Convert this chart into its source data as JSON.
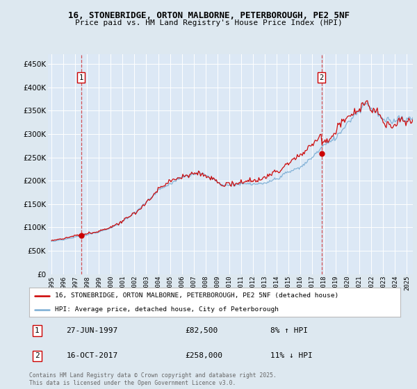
{
  "title_line1": "16, STONEBRIDGE, ORTON MALBORNE, PETERBOROUGH, PE2 5NF",
  "title_line2": "Price paid vs. HM Land Registry's House Price Index (HPI)",
  "legend_label_red": "16, STONEBRIDGE, ORTON MALBORNE, PETERBOROUGH, PE2 5NF (detached house)",
  "legend_label_blue": "HPI: Average price, detached house, City of Peterborough",
  "annotation1_date": "27-JUN-1997",
  "annotation1_price": "£82,500",
  "annotation1_hpi": "8% ↑ HPI",
  "annotation2_date": "16-OCT-2017",
  "annotation2_price": "£258,000",
  "annotation2_hpi": "11% ↓ HPI",
  "copyright_text": "Contains HM Land Registry data © Crown copyright and database right 2025.\nThis data is licensed under the Open Government Licence v3.0.",
  "red_color": "#cc0000",
  "blue_color": "#7aadd4",
  "background_color": "#dde8f0",
  "plot_bg_color": "#dce8f5",
  "sale1_t": 1997.49,
  "sale2_t": 2017.79,
  "sale1_price": 82500,
  "sale2_price": 258000,
  "ylim": [
    0,
    470000
  ],
  "xlim_start": 1994.7,
  "xlim_end": 2025.5
}
